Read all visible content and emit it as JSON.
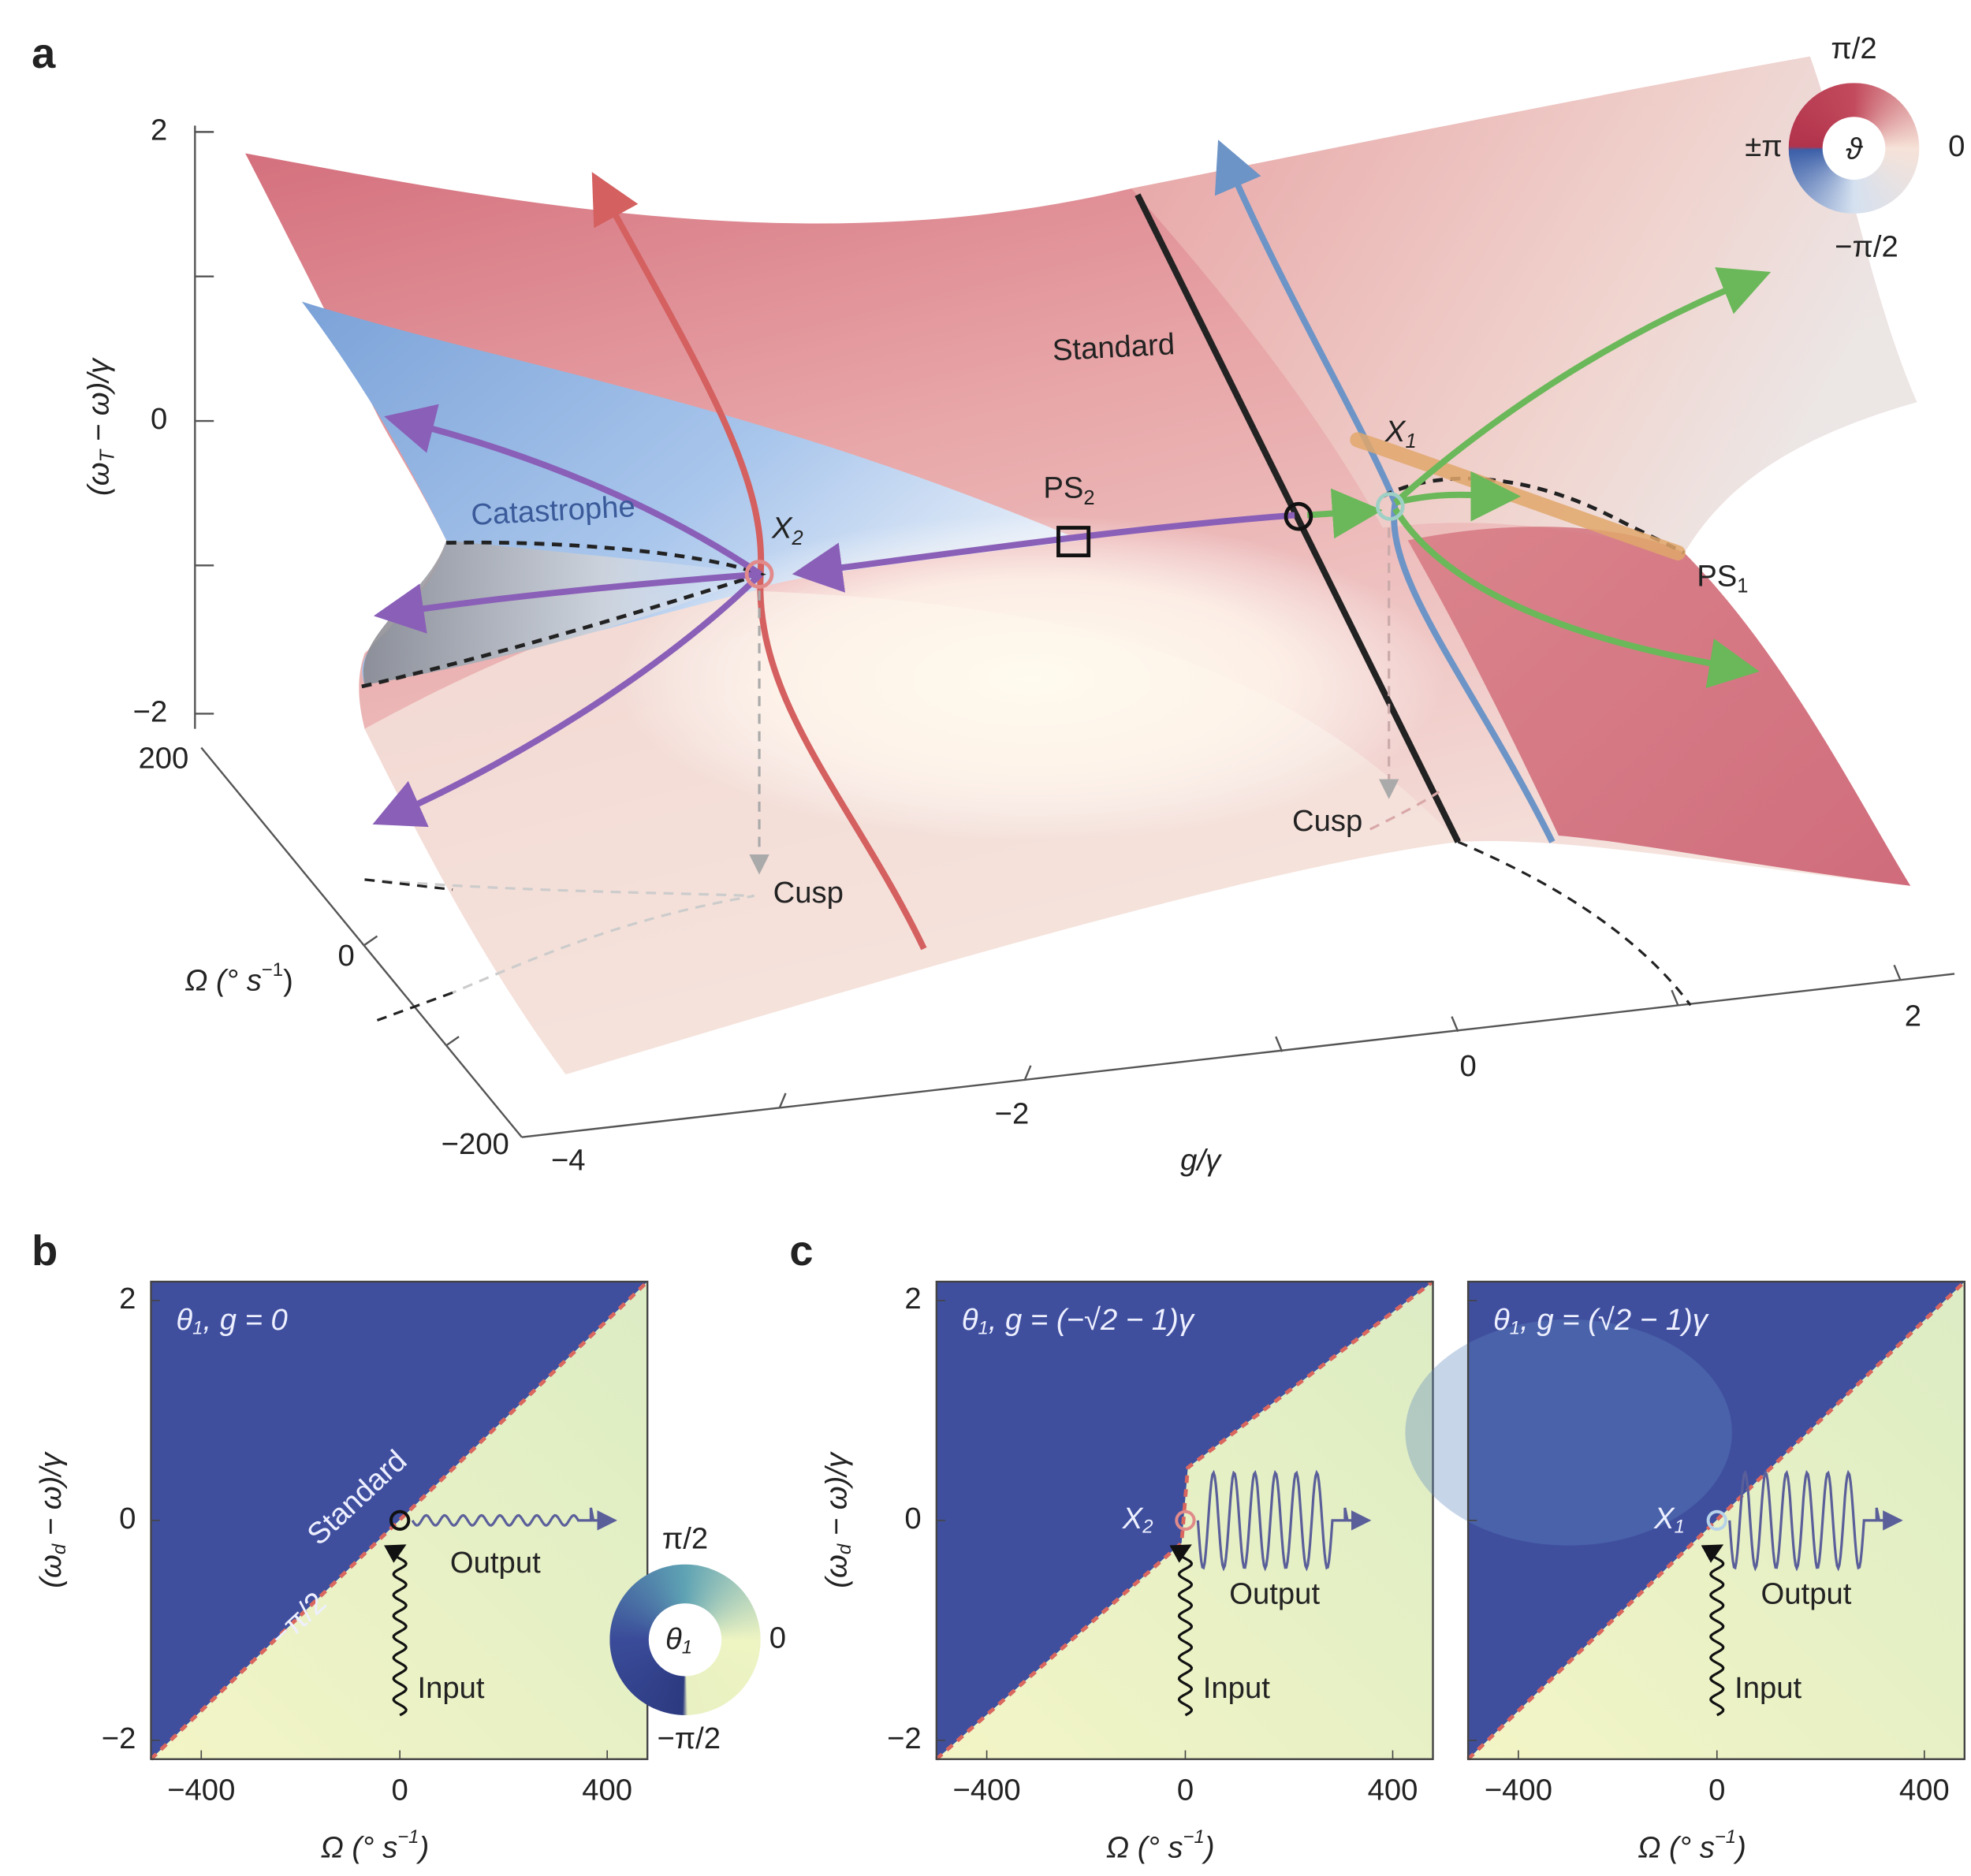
{
  "panel_a": {
    "label": "a",
    "y_axis": {
      "label": {
        "pre": "(ω",
        "sub": "T",
        "post": " − ω)/γ"
      },
      "ticks": [
        "2",
        "0",
        "−2"
      ]
    },
    "omega_axis": {
      "label": {
        "pre": "Ω (° s",
        "sup": "−1",
        "post": ")"
      },
      "ticks": [
        "200",
        "0",
        "−200"
      ]
    },
    "g_axis": {
      "label": "g/γ",
      "ticks": [
        "−4",
        "−2",
        "0",
        "2"
      ]
    },
    "annotations": {
      "standard": "Standard",
      "catastrophe": "Catastrophe",
      "x2": {
        "base": "X",
        "sub": "2"
      },
      "ps2": {
        "base": "PS",
        "sub": "2"
      },
      "x1": {
        "base": "X",
        "sub": "1"
      },
      "ps1": {
        "base": "PS",
        "sub": "1"
      },
      "cusp_left": "Cusp",
      "cusp_right": "Cusp"
    },
    "colorwheel": {
      "top": "π/2",
      "left": "±π",
      "center": "ϑ",
      "right": "0",
      "bottom": "−π/2"
    }
  },
  "panel_b": {
    "label": "b",
    "plot": {
      "title": {
        "base": "θ",
        "sub": "1",
        "post": ", g = 0"
      },
      "y_label": {
        "pre": "(ω",
        "sub": "d",
        "post": " − ω)/γ"
      },
      "y_ticks": [
        "2",
        "0",
        "−2"
      ],
      "x_ticks": [
        "−400",
        "0",
        "400"
      ],
      "x_label": {
        "pre": "Ω (° s",
        "sup": "−1",
        "post": ")"
      },
      "boundary_label": "Standard",
      "phase_label": "−π/2",
      "output": "Output",
      "input": "Input"
    },
    "colorwheel": {
      "top": "π/2",
      "center": {
        "base": "θ",
        "sub": "1"
      },
      "right": "0",
      "bottom": "−π/2"
    }
  },
  "panel_c": {
    "label": "c",
    "plots": [
      {
        "title": {
          "base": "θ",
          "sub": "1",
          "post": ", g = (−√2 − 1)γ"
        },
        "y_label": {
          "pre": "(ω",
          "sub": "d",
          "post": " − ω)/γ"
        },
        "y_ticks": [
          "2",
          "0",
          "−2"
        ],
        "x_ticks": [
          "−400",
          "0",
          "400"
        ],
        "x_label": {
          "pre": "Ω (° s",
          "sup": "−1",
          "post": ")"
        },
        "point": {
          "base": "X",
          "sub": "2"
        },
        "output": "Output",
        "input": "Input"
      },
      {
        "title": {
          "base": "θ",
          "sub": "1",
          "post": ", g = (√2 − 1)γ"
        },
        "x_ticks": [
          "−400",
          "0",
          "400"
        ],
        "x_label": {
          "pre": "Ω (° s",
          "sup": "−1",
          "post": ")"
        },
        "point": {
          "base": "X",
          "sub": "1"
        },
        "output": "Output",
        "input": "Input"
      }
    ]
  }
}
